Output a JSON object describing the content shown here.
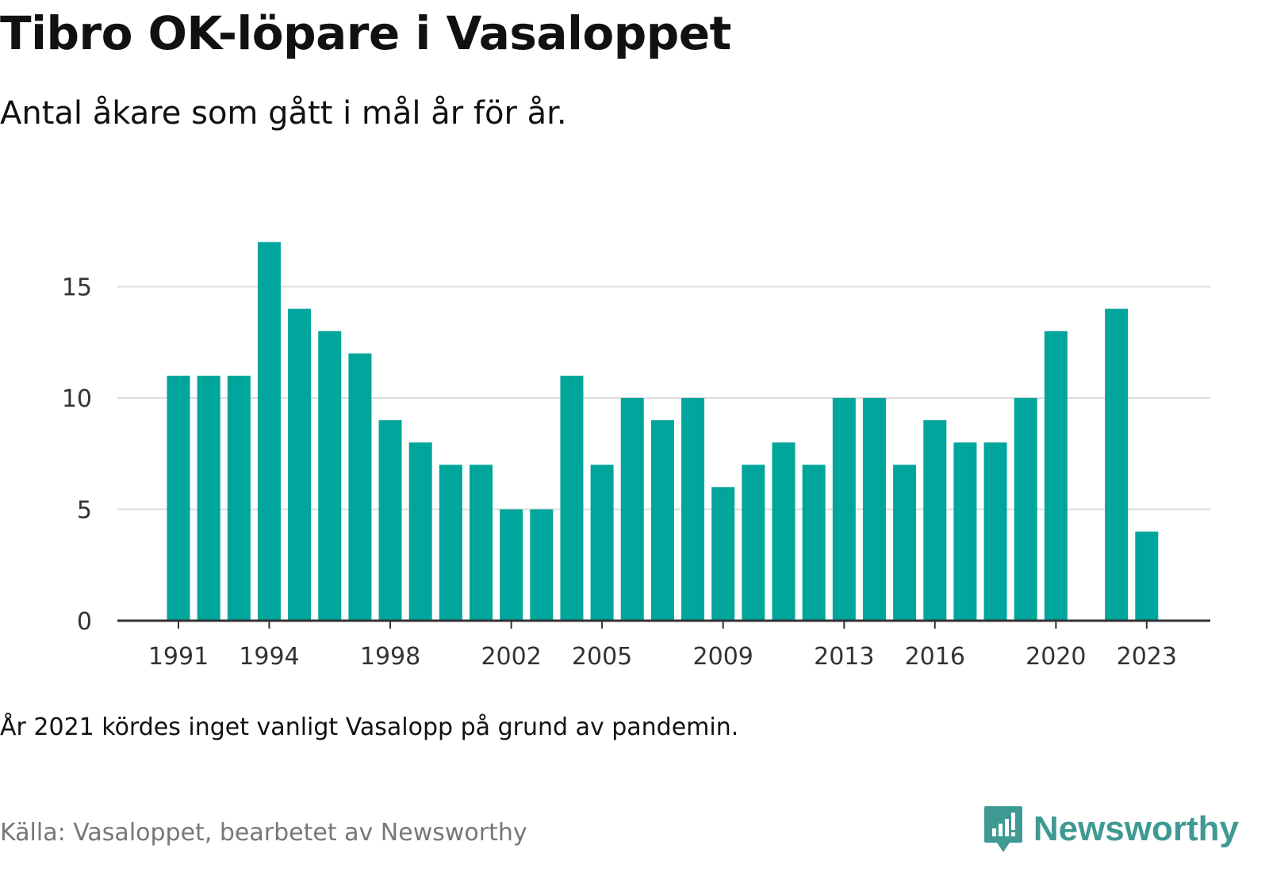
{
  "title": "Tibro OK-löpare i Vasaloppet",
  "subtitle": "Antal åkare som gått i mål år för år.",
  "note": "År 2021 kördes inget vanligt Vasalopp på grund av pandemin.",
  "source": "Källa: Vasaloppet, bearbetet av Newsworthy",
  "brand": {
    "name": "Newsworthy",
    "color": "#3f9a93",
    "icon": "newsworthy-logo-icon"
  },
  "colors": {
    "bar": "#00a59b",
    "grid": "#dddddd",
    "axis": "#333333"
  },
  "chart_data": {
    "type": "bar",
    "categories": [
      1991,
      1992,
      1993,
      1994,
      1995,
      1996,
      1997,
      1998,
      1999,
      2000,
      2001,
      2002,
      2003,
      2004,
      2005,
      2006,
      2007,
      2008,
      2009,
      2010,
      2011,
      2012,
      2013,
      2014,
      2015,
      2016,
      2017,
      2018,
      2019,
      2020,
      2021,
      2022,
      2023
    ],
    "values": [
      11,
      11,
      11,
      17,
      14,
      13,
      12,
      9,
      8,
      7,
      7,
      5,
      5,
      11,
      7,
      10,
      9,
      10,
      6,
      7,
      8,
      7,
      10,
      10,
      7,
      9,
      8,
      8,
      10,
      13,
      null,
      14,
      4
    ],
    "title": "Tibro OK-löpare i Vasaloppet",
    "subtitle": "Antal åkare som gått i mål år för år.",
    "ylim": [
      0,
      17.5
    ],
    "y_ticks": [
      0,
      5,
      10,
      15
    ],
    "x_tick_labels": [
      1991,
      1994,
      1998,
      2002,
      2005,
      2009,
      2013,
      2016,
      2020,
      2023
    ],
    "grid": "horizontal"
  }
}
